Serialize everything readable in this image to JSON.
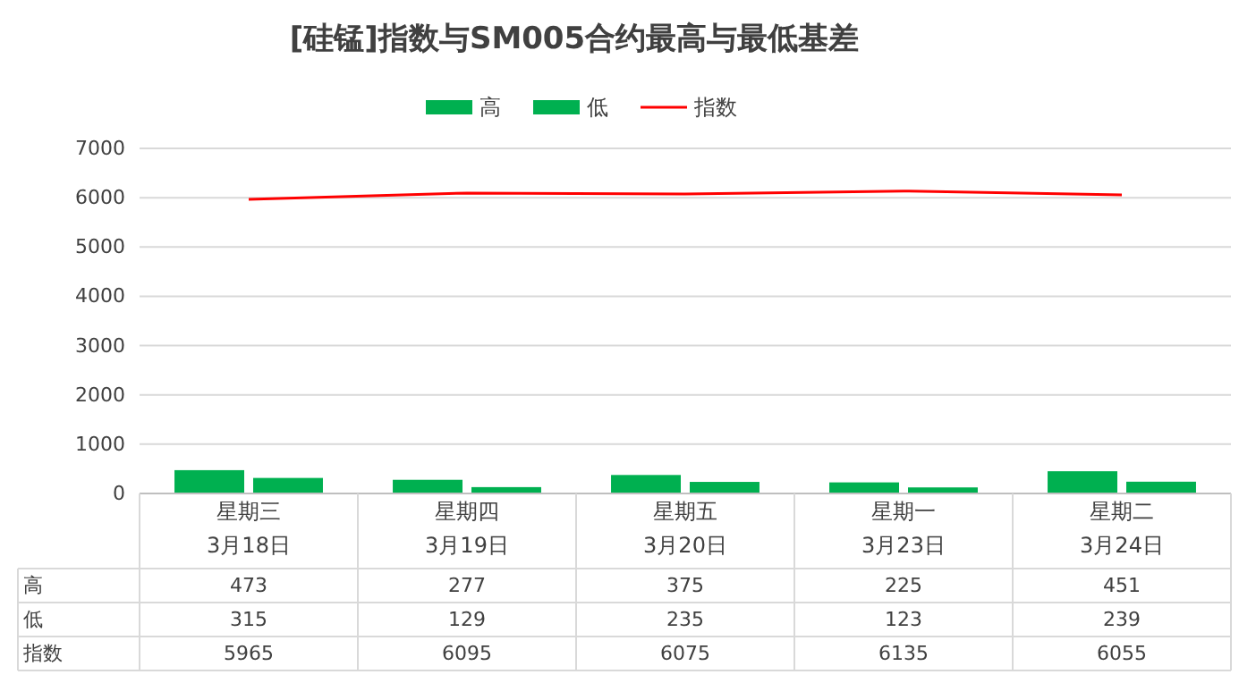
{
  "chart_data": {
    "type": "bar",
    "title": "[硅锰]指数与SM005合约最高与最低基差",
    "categories": [
      "星期三\n3月18日",
      "星期四\n3月19日",
      "星期五\n3月20日",
      "星期一\n3月23日",
      "星期二\n3月24日"
    ],
    "series": [
      {
        "name": "高",
        "color": "#00b050",
        "values": [
          473,
          277,
          375,
          225,
          451
        ]
      },
      {
        "name": "低",
        "color": "#00b050",
        "values": [
          315,
          129,
          235,
          123,
          239
        ]
      },
      {
        "name": "指数",
        "type": "line",
        "color": "#ff0000",
        "values": [
          5965,
          6095,
          6075,
          6135,
          6055
        ]
      }
    ],
    "ylim": [
      0,
      7000
    ],
    "yticks": [
      0,
      1000,
      2000,
      3000,
      4000,
      5000,
      6000,
      7000
    ],
    "grid": "y",
    "legend": "top",
    "data_labels": true
  }
}
